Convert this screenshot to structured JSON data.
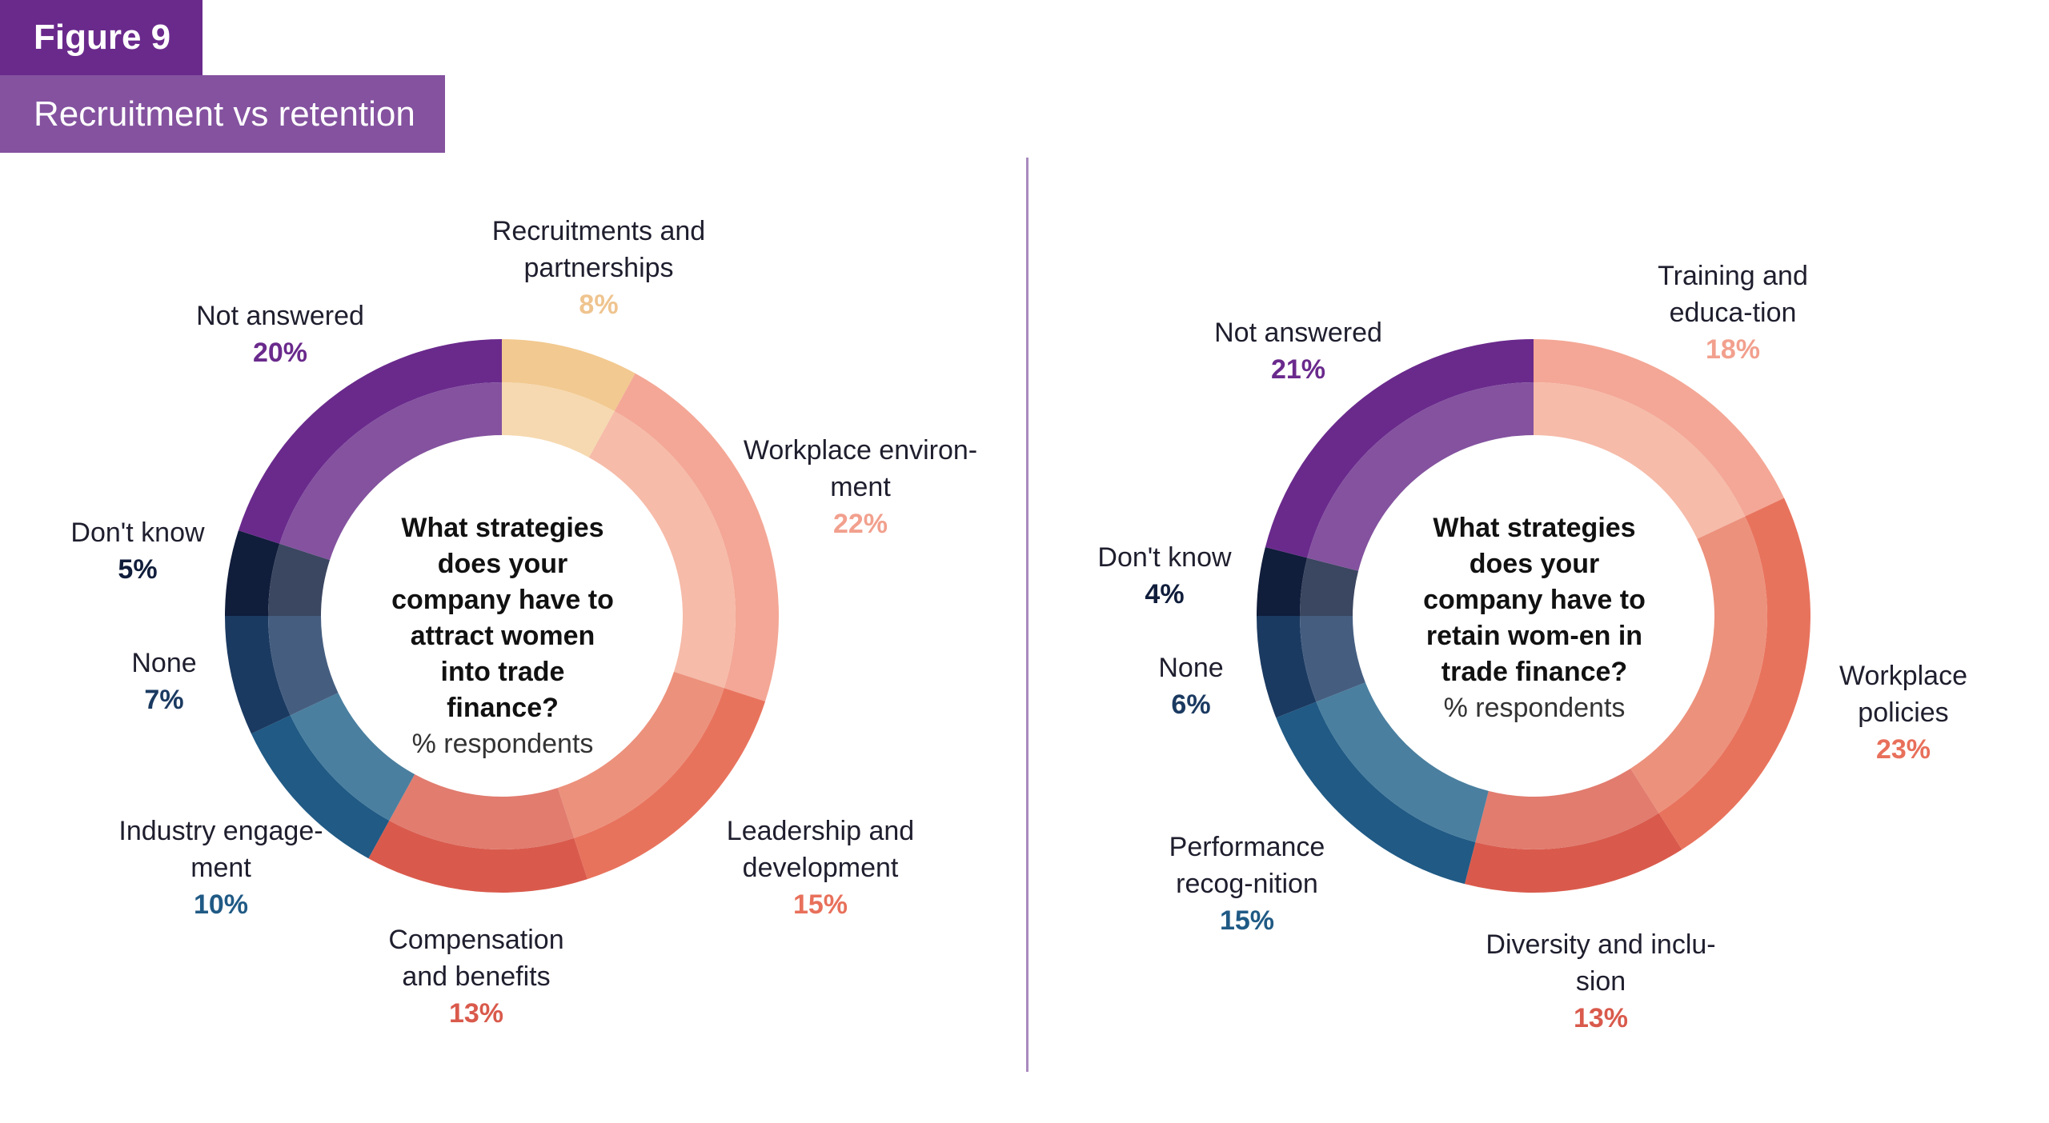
{
  "figure_label": "Figure 9",
  "figure_title": "Recruitment vs retention",
  "colors": {
    "purple_dark": "#6a2a8c",
    "purple_light": "#84529f",
    "divider": "#a98abf"
  },
  "chart_data": [
    {
      "type": "pie",
      "donut": true,
      "center_question": "What strategies does your company have to attract women into trade finance?",
      "center_subtitle": "% respondents",
      "slices": [
        {
          "label": "Recruitments and partnerships",
          "value": 8,
          "pct": "8%",
          "outer": "#f2c990",
          "inner": "#f6d9b0",
          "text_color": "#efc48f"
        },
        {
          "label": "Workplace environ-ment",
          "value": 22,
          "pct": "22%",
          "outer": "#f4a796",
          "inner": "#f6bba9",
          "text_color": "#f2a08e"
        },
        {
          "label": "Leadership and development",
          "value": 15,
          "pct": "15%",
          "outer": "#e8735d",
          "inner": "#ec917c",
          "text_color": "#e8705b"
        },
        {
          "label": "Compensation and benefits",
          "value": 13,
          "pct": "13%",
          "outer": "#d95a4c",
          "inner": "#e17c6f",
          "text_color": "#d95a4c"
        },
        {
          "label": "Industry engage-ment",
          "value": 10,
          "pct": "10%",
          "outer": "#205a85",
          "inner": "#4a7f9f",
          "text_color": "#205a85"
        },
        {
          "label": "None",
          "value": 7,
          "pct": "7%",
          "outer": "#1b3a61",
          "inner": "#455e80",
          "text_color": "#1b3a61"
        },
        {
          "label": "Don't know",
          "value": 5,
          "pct": "5%",
          "outer": "#101d3b",
          "inner": "#3b4660",
          "text_color": "#101d3b"
        },
        {
          "label": "Not answered",
          "value": 20,
          "pct": "20%",
          "outer": "#6a2a8c",
          "inner": "#84529f",
          "text_color": "#6a2a8c"
        }
      ]
    },
    {
      "type": "pie",
      "donut": true,
      "center_question": "What strategies does your company have to retain wom-en in trade finance?",
      "center_subtitle": "% respondents",
      "slices": [
        {
          "label": "Training and educa-tion",
          "value": 18,
          "pct": "18%",
          "outer": "#f4a796",
          "inner": "#f6bba9",
          "text_color": "#f2a08e"
        },
        {
          "label": "Workplace policies",
          "value": 23,
          "pct": "23%",
          "outer": "#e8735d",
          "inner": "#ec917c",
          "text_color": "#e8705b"
        },
        {
          "label": "Diversity and inclu-sion",
          "value": 13,
          "pct": "13%",
          "outer": "#d95a4c",
          "inner": "#e17c6f",
          "text_color": "#d95a4c"
        },
        {
          "label": "Performance recog-nition",
          "value": 15,
          "pct": "15%",
          "outer": "#205a85",
          "inner": "#4a7f9f",
          "text_color": "#205a85"
        },
        {
          "label": "None",
          "value": 6,
          "pct": "6%",
          "outer": "#1b3a61",
          "inner": "#455e80",
          "text_color": "#1b3a61"
        },
        {
          "label": "Don't know",
          "value": 4,
          "pct": "4%",
          "outer": "#101d3b",
          "inner": "#3b4660",
          "text_color": "#101d3b"
        },
        {
          "label": "Not answered",
          "value": 21,
          "pct": "21%",
          "outer": "#6a2a8c",
          "inner": "#84529f",
          "text_color": "#6a2a8c"
        }
      ]
    }
  ]
}
